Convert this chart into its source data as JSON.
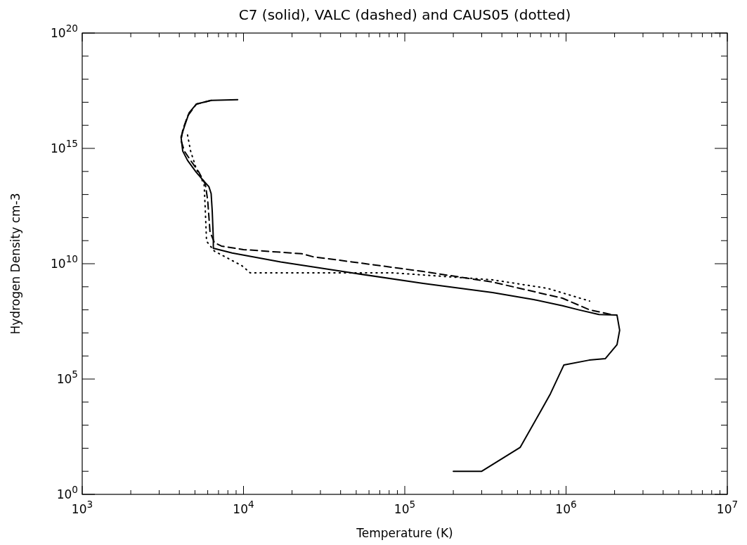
{
  "chart_data": {
    "type": "line",
    "title": "C7 (solid), VALC (dashed) and CAUS05 (dotted)",
    "xlabel": "Temperature (K)",
    "ylabel": "Hydrogen Density cm-3",
    "log": "xy",
    "grid": false,
    "marker": "none",
    "xlim": [
      1000,
      10000000
    ],
    "ylim": [
      1,
      1e+20
    ],
    "xticks": [
      {
        "value": 1000,
        "label": "10$^{3}$"
      },
      {
        "value": 2000,
        "label": null
      },
      {
        "value": 3000,
        "label": null
      },
      {
        "value": 4000,
        "label": null
      },
      {
        "value": 5000,
        "label": null
      },
      {
        "value": 6000,
        "label": null
      },
      {
        "value": 7000,
        "label": null
      },
      {
        "value": 8000,
        "label": null
      },
      {
        "value": 9000,
        "label": null
      },
      {
        "value": 10000,
        "label": "10$^{4}$"
      },
      {
        "value": 20000,
        "label": null
      },
      {
        "value": 30000,
        "label": null
      },
      {
        "value": 40000,
        "label": null
      },
      {
        "value": 50000,
        "label": null
      },
      {
        "value": 60000,
        "label": null
      },
      {
        "value": 70000,
        "label": null
      },
      {
        "value": 80000,
        "label": null
      },
      {
        "value": 90000,
        "label": null
      },
      {
        "value": 100000,
        "label": "10$^{5}$"
      },
      {
        "value": 200000,
        "label": null
      },
      {
        "value": 300000,
        "label": null
      },
      {
        "value": 400000,
        "label": null
      },
      {
        "value": 500000,
        "label": null
      },
      {
        "value": 600000,
        "label": null
      },
      {
        "value": 700000,
        "label": null
      },
      {
        "value": 800000,
        "label": null
      },
      {
        "value": 900000,
        "label": null
      },
      {
        "value": 1000000,
        "label": "10$^{6}$"
      },
      {
        "value": 2000000,
        "label": null
      },
      {
        "value": 3000000,
        "label": null
      },
      {
        "value": 4000000,
        "label": null
      },
      {
        "value": 5000000,
        "label": null
      },
      {
        "value": 6000000,
        "label": null
      },
      {
        "value": 7000000,
        "label": null
      },
      {
        "value": 8000000,
        "label": null
      },
      {
        "value": 9000000,
        "label": null
      },
      {
        "value": 10000000,
        "label": "10$^{7}$"
      }
    ],
    "yticks": [
      {
        "value": 1,
        "label": "10$^{0}$"
      },
      {
        "value": 10,
        "label": null
      },
      {
        "value": 100,
        "label": null
      },
      {
        "value": 1000,
        "label": null
      },
      {
        "value": 10000,
        "label": null
      },
      {
        "value": 100000,
        "label": "10$^{5}$"
      },
      {
        "value": 1000000.0,
        "label": null
      },
      {
        "value": 10000000.0,
        "label": null
      },
      {
        "value": 100000000.0,
        "label": null
      },
      {
        "value": 1000000000.0,
        "label": null
      },
      {
        "value": 10000000000.0,
        "label": "10$^{10}$"
      },
      {
        "value": 100000000000.0,
        "label": null
      },
      {
        "value": 1000000000000.0,
        "label": null
      },
      {
        "value": 10000000000000.0,
        "label": null
      },
      {
        "value": 100000000000000.0,
        "label": null
      },
      {
        "value": 1000000000000000.0,
        "label": "10$^{15}$"
      },
      {
        "value": 1e+16,
        "label": null
      },
      {
        "value": 1e+17,
        "label": null
      },
      {
        "value": 1e+18,
        "label": null
      },
      {
        "value": 1e+19,
        "label": null
      },
      {
        "value": 1e+20,
        "label": "10$^{20}$"
      }
    ],
    "series": [
      {
        "color": "#000000",
        "line_style": "solid",
        "x": [
          9200,
          6300,
          5100,
          4600,
          4300,
          4100,
          4200,
          4500,
          5100,
          5700,
          6100,
          6300,
          6400,
          6500,
          6500,
          8500,
          17000,
          47000,
          130000,
          350000,
          630000,
          950000,
          1200000,
          1600000,
          2070000,
          2150000,
          2070000,
          1750000,
          1390000,
          970000,
          800000,
          700000,
          520000,
          300000,
          200000
        ],
        "values": [
          1.3e+17,
          1.2e+17,
          8.3e+16,
          3.5e+16,
          8900000000000000.0,
          3100000000000000.0,
          760000000000000.0,
          300000000000000.0,
          91000000000000.0,
          37000000000000.0,
          22000000000000.0,
          11000000000000.0,
          1900000000000.0,
          120000000000.0,
          47000000000.0,
          29000000000.0,
          12000000000.0,
          4000000000.0,
          1400000000.0,
          560000000.0,
          280000000.0,
          150000000.0,
          100000000.0,
          63000000.0,
          59000000.0,
          13000000.0,
          3100000.0,
          760000.0,
          660000.0,
          410000.0,
          23000.0,
          4300,
          110,
          10,
          10
        ]
      },
      {
        "color": "#000000",
        "line_style": "dashed",
        "x": [
          6300,
          5100,
          4500,
          4200,
          4100,
          4300,
          4700,
          5300,
          5800,
          6000,
          6200,
          6600,
          7300,
          10000,
          23000,
          27000,
          47000,
          130000,
          350000,
          950000,
          1400000,
          1900000
        ],
        "values": [
          1.2e+17,
          8.3e+16,
          2.5e+16,
          6200000000000000.0,
          2200000000000000.0,
          760000000000000.0,
          300000000000000.0,
          91000000000000.0,
          28000000000000.0,
          5500000000000.0,
          240000000000.0,
          82000000000.0,
          58000000000.0,
          41000000000.0,
          27000000000.0,
          20000000000.0,
          12000000000.0,
          4600000000.0,
          1600000000.0,
          320000000.0,
          100000000.0,
          63000000.0
        ]
      },
      {
        "color": "#000000",
        "line_style": "dotted",
        "x": [
          4500,
          4700,
          5100,
          5700,
          5800,
          5900,
          6600,
          9800,
          11000,
          85000,
          350000,
          770000,
          1400000
        ],
        "values": [
          3800000000000000.0,
          760000000000000.0,
          130000000000000.0,
          28000000000000.0,
          1900000000000.0,
          95000000000.0,
          35000000000.0,
          8100000000.0,
          4000000000.0,
          4000000000.0,
          2000000000.0,
          850000000.0,
          240000000.0
        ]
      }
    ]
  }
}
